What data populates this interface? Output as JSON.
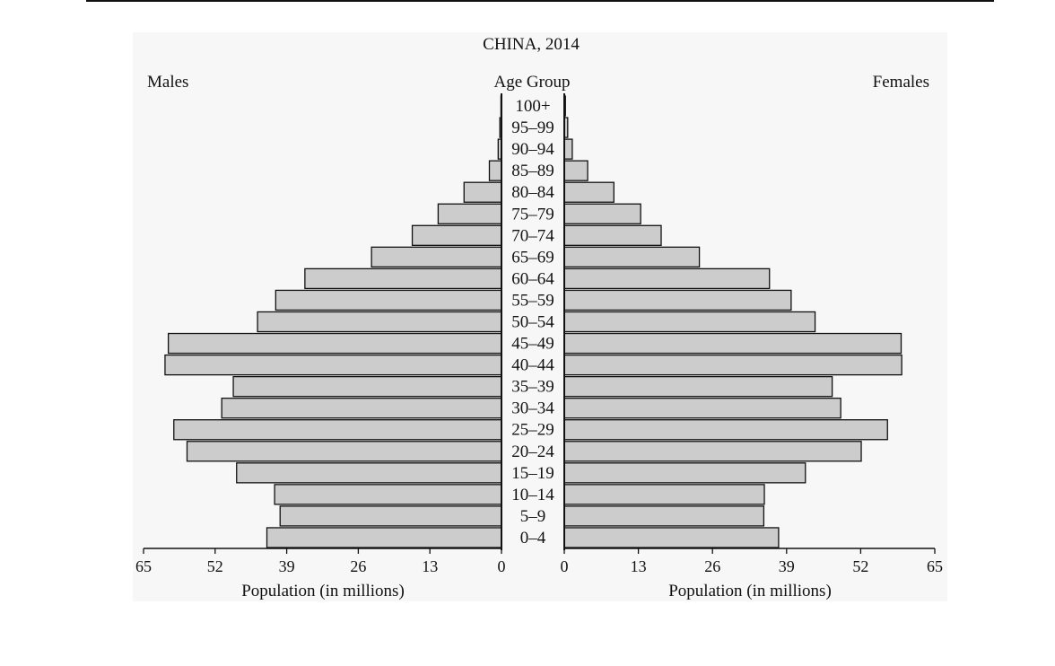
{
  "chart_data": {
    "type": "bar",
    "subtype": "population-pyramid",
    "title": "CHINA, 2014",
    "left_label": "Males",
    "center_label": "Age Group",
    "right_label": "Females",
    "xlabel_left": "Population (in millions)",
    "xlabel_right": "Population (in millions)",
    "xlim": [
      0,
      65
    ],
    "xticks": [
      0,
      13,
      26,
      39,
      52,
      65
    ],
    "categories": [
      "100+",
      "95–99",
      "90–94",
      "85–89",
      "80–84",
      "75–79",
      "70–74",
      "65–69",
      "60–64",
      "55–59",
      "50–54",
      "45–49",
      "40–44",
      "35–39",
      "30–34",
      "25–29",
      "20–24",
      "15–19",
      "10–14",
      "5–9",
      "0–4"
    ],
    "series": [
      {
        "name": "Males",
        "color": "#cccccc",
        "values": [
          0.1,
          0.3,
          0.6,
          2.2,
          6.8,
          11.5,
          16.2,
          23.6,
          35.7,
          41.0,
          44.3,
          60.5,
          61.1,
          48.7,
          50.8,
          59.5,
          57.1,
          48.1,
          41.2,
          40.2,
          42.6
        ]
      },
      {
        "name": "Females",
        "color": "#cccccc",
        "values": [
          0.2,
          0.6,
          1.4,
          4.1,
          8.7,
          13.4,
          17.0,
          23.7,
          36.0,
          39.8,
          44.0,
          59.1,
          59.2,
          47.0,
          48.5,
          56.7,
          52.1,
          42.3,
          35.1,
          35.0,
          37.6
        ]
      }
    ],
    "grid": false,
    "legend": "none"
  }
}
